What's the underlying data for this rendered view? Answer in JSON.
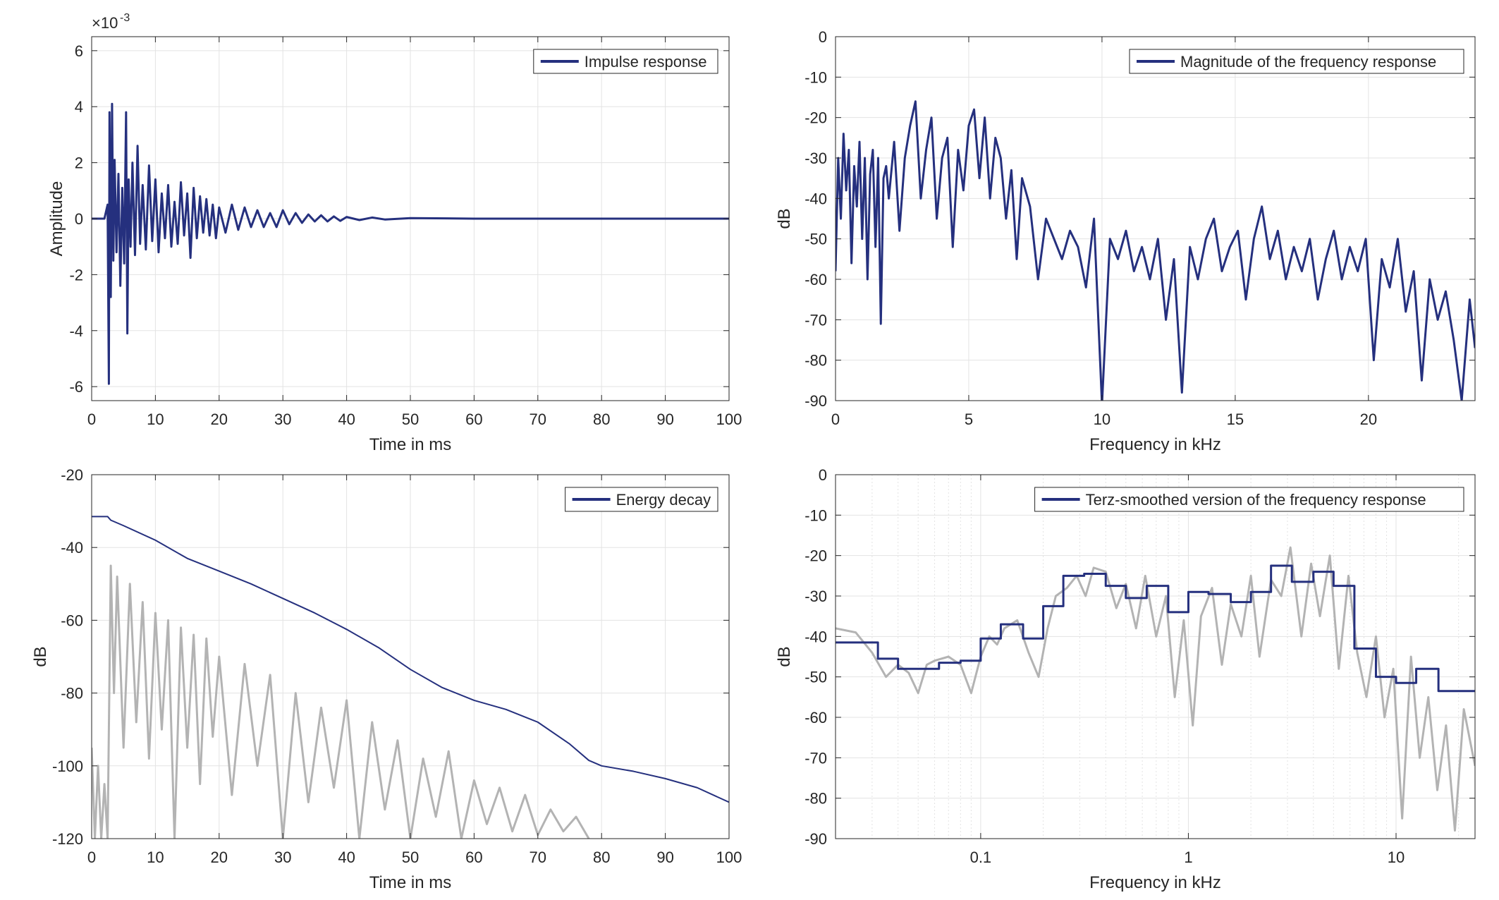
{
  "figure": {
    "colors": {
      "series": "#25307e",
      "raw": "#b3b3b3",
      "grid": "#e3e3e3",
      "axis": "#262626"
    }
  },
  "chart_data": [
    {
      "id": "impulse",
      "type": "line",
      "title": "",
      "xlabel": "Time in ms",
      "ylabel": "Amplitude",
      "exponent_label": "×10",
      "exponent_power": "-3",
      "xlim": [
        0,
        100
      ],
      "ylim": [
        -6.5,
        6.5
      ],
      "xticks": [
        0,
        10,
        20,
        30,
        40,
        50,
        60,
        70,
        80,
        90,
        100
      ],
      "yticks": [
        -6,
        -4,
        -2,
        0,
        2,
        4,
        6
      ],
      "grid": true,
      "legend_position": "top-right",
      "legend": [
        "Impulse response"
      ],
      "series": [
        {
          "name": "Impulse response",
          "x": [
            0,
            2,
            2.5,
            2.7,
            2.8,
            3.0,
            3.2,
            3.4,
            3.6,
            3.9,
            4.2,
            4.5,
            4.8,
            5.1,
            5.4,
            5.6,
            5.8,
            6.1,
            6.4,
            6.8,
            7.2,
            7.6,
            8.0,
            8.5,
            9.0,
            9.5,
            10,
            10.5,
            11,
            11.5,
            12,
            12.5,
            13,
            13.5,
            14,
            14.5,
            15,
            15.5,
            16,
            16.5,
            17,
            17.5,
            18,
            18.5,
            19,
            19.5,
            20,
            21,
            22,
            23,
            24,
            25,
            26,
            27,
            28,
            29,
            30,
            31,
            32,
            33,
            34,
            35,
            36,
            37,
            38,
            39,
            40,
            42,
            44,
            46,
            50,
            60,
            70,
            80,
            90,
            100
          ],
          "y": [
            0,
            0,
            0.5,
            -5.9,
            3.8,
            -2.8,
            4.1,
            -1.5,
            2.1,
            -1.2,
            1.6,
            -2.4,
            1.1,
            -1.6,
            3.8,
            -4.1,
            1.4,
            -1.0,
            2.0,
            -1.3,
            2.6,
            -0.9,
            1.2,
            -1.1,
            1.9,
            -0.8,
            1.4,
            -1.2,
            0.9,
            -0.7,
            1.2,
            -1.0,
            0.6,
            -0.9,
            1.3,
            -0.6,
            0.9,
            -1.4,
            1.1,
            -0.7,
            0.8,
            -0.5,
            0.7,
            -0.6,
            0.5,
            -0.7,
            0.4,
            -0.5,
            0.5,
            -0.4,
            0.4,
            -0.3,
            0.3,
            -0.3,
            0.2,
            -0.3,
            0.3,
            -0.2,
            0.2,
            -0.15,
            0.15,
            -0.1,
            0.12,
            -0.1,
            0.08,
            -0.08,
            0.06,
            -0.05,
            0.04,
            -0.03,
            0.02,
            0.0,
            0.0,
            0.0,
            0.0,
            0.0
          ]
        }
      ]
    },
    {
      "id": "magnitude",
      "type": "line",
      "title": "",
      "xlabel": "Frequency in kHz",
      "ylabel": "dB",
      "xlim": [
        0,
        24
      ],
      "ylim": [
        -90,
        0
      ],
      "xticks": [
        0,
        5,
        10,
        15,
        20
      ],
      "yticks": [
        0,
        -10,
        -20,
        -30,
        -40,
        -50,
        -60,
        -70,
        -80,
        -90
      ],
      "grid": true,
      "legend_position": "top-right",
      "legend": [
        "Magnitude of the frequency response"
      ],
      "series": [
        {
          "name": "Magnitude of the frequency response",
          "x": [
            0,
            0.1,
            0.2,
            0.3,
            0.4,
            0.5,
            0.6,
            0.7,
            0.8,
            0.9,
            1.0,
            1.1,
            1.2,
            1.3,
            1.4,
            1.5,
            1.6,
            1.7,
            1.8,
            1.9,
            2.0,
            2.2,
            2.4,
            2.6,
            2.8,
            3.0,
            3.2,
            3.4,
            3.6,
            3.8,
            4.0,
            4.2,
            4.4,
            4.6,
            4.8,
            5.0,
            5.2,
            5.4,
            5.6,
            5.8,
            6.0,
            6.2,
            6.4,
            6.6,
            6.8,
            7.0,
            7.3,
            7.6,
            7.9,
            8.2,
            8.5,
            8.8,
            9.1,
            9.4,
            9.7,
            10.0,
            10.3,
            10.6,
            10.9,
            11.2,
            11.5,
            11.8,
            12.1,
            12.4,
            12.7,
            13.0,
            13.3,
            13.6,
            13.9,
            14.2,
            14.5,
            14.8,
            15.1,
            15.4,
            15.7,
            16.0,
            16.3,
            16.6,
            16.9,
            17.2,
            17.5,
            17.8,
            18.1,
            18.4,
            18.7,
            19.0,
            19.3,
            19.6,
            19.9,
            20.2,
            20.5,
            20.8,
            21.1,
            21.4,
            21.7,
            22.0,
            22.3,
            22.6,
            22.9,
            23.2,
            23.5,
            23.8,
            24.0
          ],
          "y": [
            -58,
            -30,
            -45,
            -24,
            -38,
            -28,
            -56,
            -32,
            -42,
            -26,
            -50,
            -30,
            -60,
            -34,
            -28,
            -52,
            -30,
            -71,
            -35,
            -32,
            -40,
            -26,
            -48,
            -30,
            -22,
            -16,
            -40,
            -28,
            -20,
            -45,
            -30,
            -25,
            -52,
            -28,
            -38,
            -22,
            -18,
            -35,
            -20,
            -40,
            -25,
            -30,
            -45,
            -33,
            -55,
            -35,
            -42,
            -60,
            -45,
            -50,
            -55,
            -48,
            -52,
            -62,
            -45,
            -91,
            -50,
            -55,
            -48,
            -58,
            -52,
            -60,
            -50,
            -70,
            -55,
            -88,
            -52,
            -60,
            -50,
            -45,
            -58,
            -52,
            -48,
            -65,
            -50,
            -42,
            -55,
            -48,
            -60,
            -52,
            -58,
            -50,
            -65,
            -55,
            -48,
            -60,
            -52,
            -58,
            -50,
            -80,
            -55,
            -62,
            -50,
            -68,
            -58,
            -85,
            -60,
            -70,
            -63,
            -75,
            -90,
            -65,
            -77
          ]
        }
      ]
    },
    {
      "id": "energy",
      "type": "line",
      "title": "",
      "xlabel": "Time in ms",
      "ylabel": "dB",
      "xlim": [
        0,
        100
      ],
      "ylim": [
        -120,
        -20
      ],
      "xticks": [
        0,
        10,
        20,
        30,
        40,
        50,
        60,
        70,
        80,
        90,
        100
      ],
      "yticks": [
        -20,
        -40,
        -60,
        -80,
        -100,
        -120
      ],
      "grid": true,
      "legend_position": "top-right",
      "legend": [
        "Energy decay"
      ],
      "series": [
        {
          "name": "Energy decay",
          "x": [
            0,
            2.5,
            3,
            5,
            10,
            15,
            20,
            25,
            30,
            35,
            40,
            45,
            50,
            55,
            60,
            65,
            70,
            75,
            78,
            80,
            85,
            90,
            95,
            100
          ],
          "y": [
            -31.5,
            -31.5,
            -32.5,
            -34,
            -38,
            -43,
            -46.5,
            -50,
            -54,
            -58,
            -62.5,
            -67.5,
            -73.5,
            -78.5,
            -82,
            -84.5,
            -88,
            -94,
            -98.5,
            -100,
            -101.5,
            -103.5,
            -106,
            -110
          ]
        },
        {
          "x": [
            0,
            0.5,
            1,
            1.5,
            2,
            2.5,
            3,
            3.5,
            4,
            5,
            6,
            7,
            8,
            9,
            10,
            11,
            12,
            13,
            14,
            15,
            16,
            17,
            18,
            19,
            20,
            22,
            24,
            26,
            28,
            30,
            32,
            34,
            36,
            38,
            40,
            42,
            44,
            46,
            48,
            50,
            52,
            54,
            56,
            58,
            60,
            62,
            64,
            66,
            68,
            70,
            72,
            74,
            76,
            78
          ],
          "y": [
            -95,
            -120,
            -100,
            -120,
            -105,
            -120,
            -45,
            -80,
            -48,
            -95,
            -50,
            -88,
            -55,
            -98,
            -58,
            -90,
            -60,
            -120,
            -62,
            -95,
            -64,
            -105,
            -65,
            -92,
            -70,
            -108,
            -72,
            -100,
            -75,
            -120,
            -80,
            -110,
            -84,
            -106,
            -82,
            -120,
            -88,
            -112,
            -93,
            -120,
            -98,
            -114,
            -96,
            -120,
            -104,
            -116,
            -106,
            -118,
            -108,
            -119,
            -112,
            -118,
            -114,
            -120
          ]
        }
      ]
    },
    {
      "id": "terz",
      "type": "line",
      "title": "",
      "xlabel": "Frequency in kHz",
      "ylabel": "dB",
      "xscale": "log",
      "xlim": [
        0.02,
        24
      ],
      "ylim": [
        -90,
        0
      ],
      "xticks": [
        0.1,
        1,
        10
      ],
      "xtick_labels": [
        "0.1",
        "1",
        "10"
      ],
      "yticks": [
        0,
        -10,
        -20,
        -30,
        -40,
        -50,
        -60,
        -70,
        -80,
        -90
      ],
      "grid": true,
      "legend_position": "top-right",
      "legend": [
        "Terz-smoothed version of the frequency response"
      ],
      "series": [
        {
          "name": "Terz-smoothed version of the frequency response",
          "x": [
            0.02,
            0.032,
            0.032,
            0.04,
            0.04,
            0.05,
            0.05,
            0.063,
            0.063,
            0.08,
            0.08,
            0.1,
            0.1,
            0.125,
            0.125,
            0.16,
            0.16,
            0.2,
            0.2,
            0.25,
            0.25,
            0.315,
            0.315,
            0.4,
            0.4,
            0.5,
            0.5,
            0.63,
            0.63,
            0.8,
            0.8,
            1.0,
            1.0,
            1.25,
            1.25,
            1.6,
            1.6,
            2.0,
            2.0,
            2.5,
            2.5,
            3.15,
            3.15,
            4.0,
            4.0,
            5.0,
            5.0,
            6.3,
            6.3,
            8.0,
            8.0,
            10.0,
            10.0,
            12.5,
            12.5,
            16.0,
            16.0,
            24.0
          ],
          "y": [
            -41.5,
            -41.5,
            -45.5,
            -45.5,
            -48,
            -48,
            -48,
            -48,
            -46.5,
            -46.5,
            -46,
            -46,
            -40.5,
            -40.5,
            -37,
            -37,
            -40.5,
            -40.5,
            -32.5,
            -32.5,
            -25,
            -25,
            -24.5,
            -24.5,
            -27.5,
            -27.5,
            -30.5,
            -30.5,
            -27.5,
            -27.5,
            -34,
            -34,
            -29,
            -29,
            -29.5,
            -29.5,
            -31.5,
            -31.5,
            -29,
            -29,
            -22.5,
            -22.5,
            -26.5,
            -26.5,
            -24,
            -24,
            -27.5,
            -27.5,
            -43,
            -43,
            -50,
            -50,
            -51.5,
            -51.5,
            -48,
            -48,
            -53.5,
            -53.5
          ]
        },
        {
          "x": [
            0.02,
            0.025,
            0.03,
            0.035,
            0.04,
            0.045,
            0.05,
            0.055,
            0.06,
            0.07,
            0.08,
            0.09,
            0.1,
            0.11,
            0.12,
            0.13,
            0.15,
            0.17,
            0.19,
            0.21,
            0.23,
            0.26,
            0.29,
            0.32,
            0.35,
            0.4,
            0.45,
            0.5,
            0.56,
            0.62,
            0.7,
            0.78,
            0.86,
            0.95,
            1.05,
            1.15,
            1.3,
            1.45,
            1.6,
            1.8,
            2.0,
            2.2,
            2.5,
            2.8,
            3.1,
            3.5,
            3.9,
            4.3,
            4.8,
            5.3,
            5.9,
            6.5,
            7.2,
            8.0,
            8.8,
            9.7,
            10.7,
            11.8,
            13.0,
            14.3,
            15.8,
            17.4,
            19.2,
            21.2,
            24.0
          ],
          "y": [
            -38,
            -39,
            -44,
            -50,
            -47,
            -49,
            -54,
            -47,
            -46,
            -45,
            -47,
            -54,
            -45,
            -40,
            -42,
            -38,
            -36,
            -44,
            -50,
            -38,
            -30,
            -28,
            -25,
            -30,
            -23,
            -24,
            -33,
            -27,
            -38,
            -25,
            -40,
            -30,
            -55,
            -36,
            -62,
            -35,
            -28,
            -47,
            -32,
            -40,
            -25,
            -45,
            -26,
            -30,
            -18,
            -40,
            -22,
            -35,
            -20,
            -48,
            -25,
            -44,
            -55,
            -40,
            -60,
            -48,
            -85,
            -45,
            -70,
            -55,
            -78,
            -62,
            -88,
            -58,
            -72
          ]
        }
      ]
    }
  ]
}
